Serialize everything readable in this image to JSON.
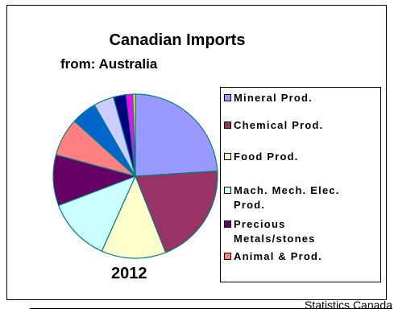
{
  "chart_data": {
    "type": "pie",
    "title": "Canadian Imports",
    "subtitle": "from: Australia",
    "year_label": "2012",
    "slices": [
      {
        "label": "Mineral Prod.",
        "value": 24.0,
        "color": "#9999ff"
      },
      {
        "label": "Chemical Prod.",
        "value": 20.0,
        "color": "#993366"
      },
      {
        "label": "Food Prod.",
        "value": 12.7,
        "color": "#ffffcc"
      },
      {
        "label": "Mach. Mech. Elec. Prod.",
        "value": 12.5,
        "color": "#ccffff"
      },
      {
        "label": "Precious Metals/stones",
        "value": 10.0,
        "color": "#660066"
      },
      {
        "label": "Animal & Prod.",
        "value": 7.5,
        "color": "#ff8080"
      },
      {
        "label": "",
        "value": 5.0,
        "color": "#0066cc"
      },
      {
        "label": "",
        "value": 4.0,
        "color": "#ccccff"
      },
      {
        "label": "",
        "value": 2.5,
        "color": "#000080"
      },
      {
        "label": "",
        "value": 1.3,
        "color": "#ff00ff"
      },
      {
        "label": "",
        "value": 0.5,
        "color": "#ffff00"
      }
    ],
    "legend": [
      {
        "label": "Mineral Prod.",
        "color": "#9999ff"
      },
      {
        "label": "Chemical Prod.",
        "color": "#993366"
      },
      {
        "label": "Food Prod.",
        "color": "#ffffcc"
      },
      {
        "label": "Mach. Mech. Elec. Prod.",
        "color": "#ccffff"
      },
      {
        "label": "Precious Metals/stones",
        "color": "#660066"
      },
      {
        "label": "Animal & Prod.",
        "color": "#ff8080"
      }
    ],
    "legend_position": "right"
  },
  "source": "Statistics Canada"
}
